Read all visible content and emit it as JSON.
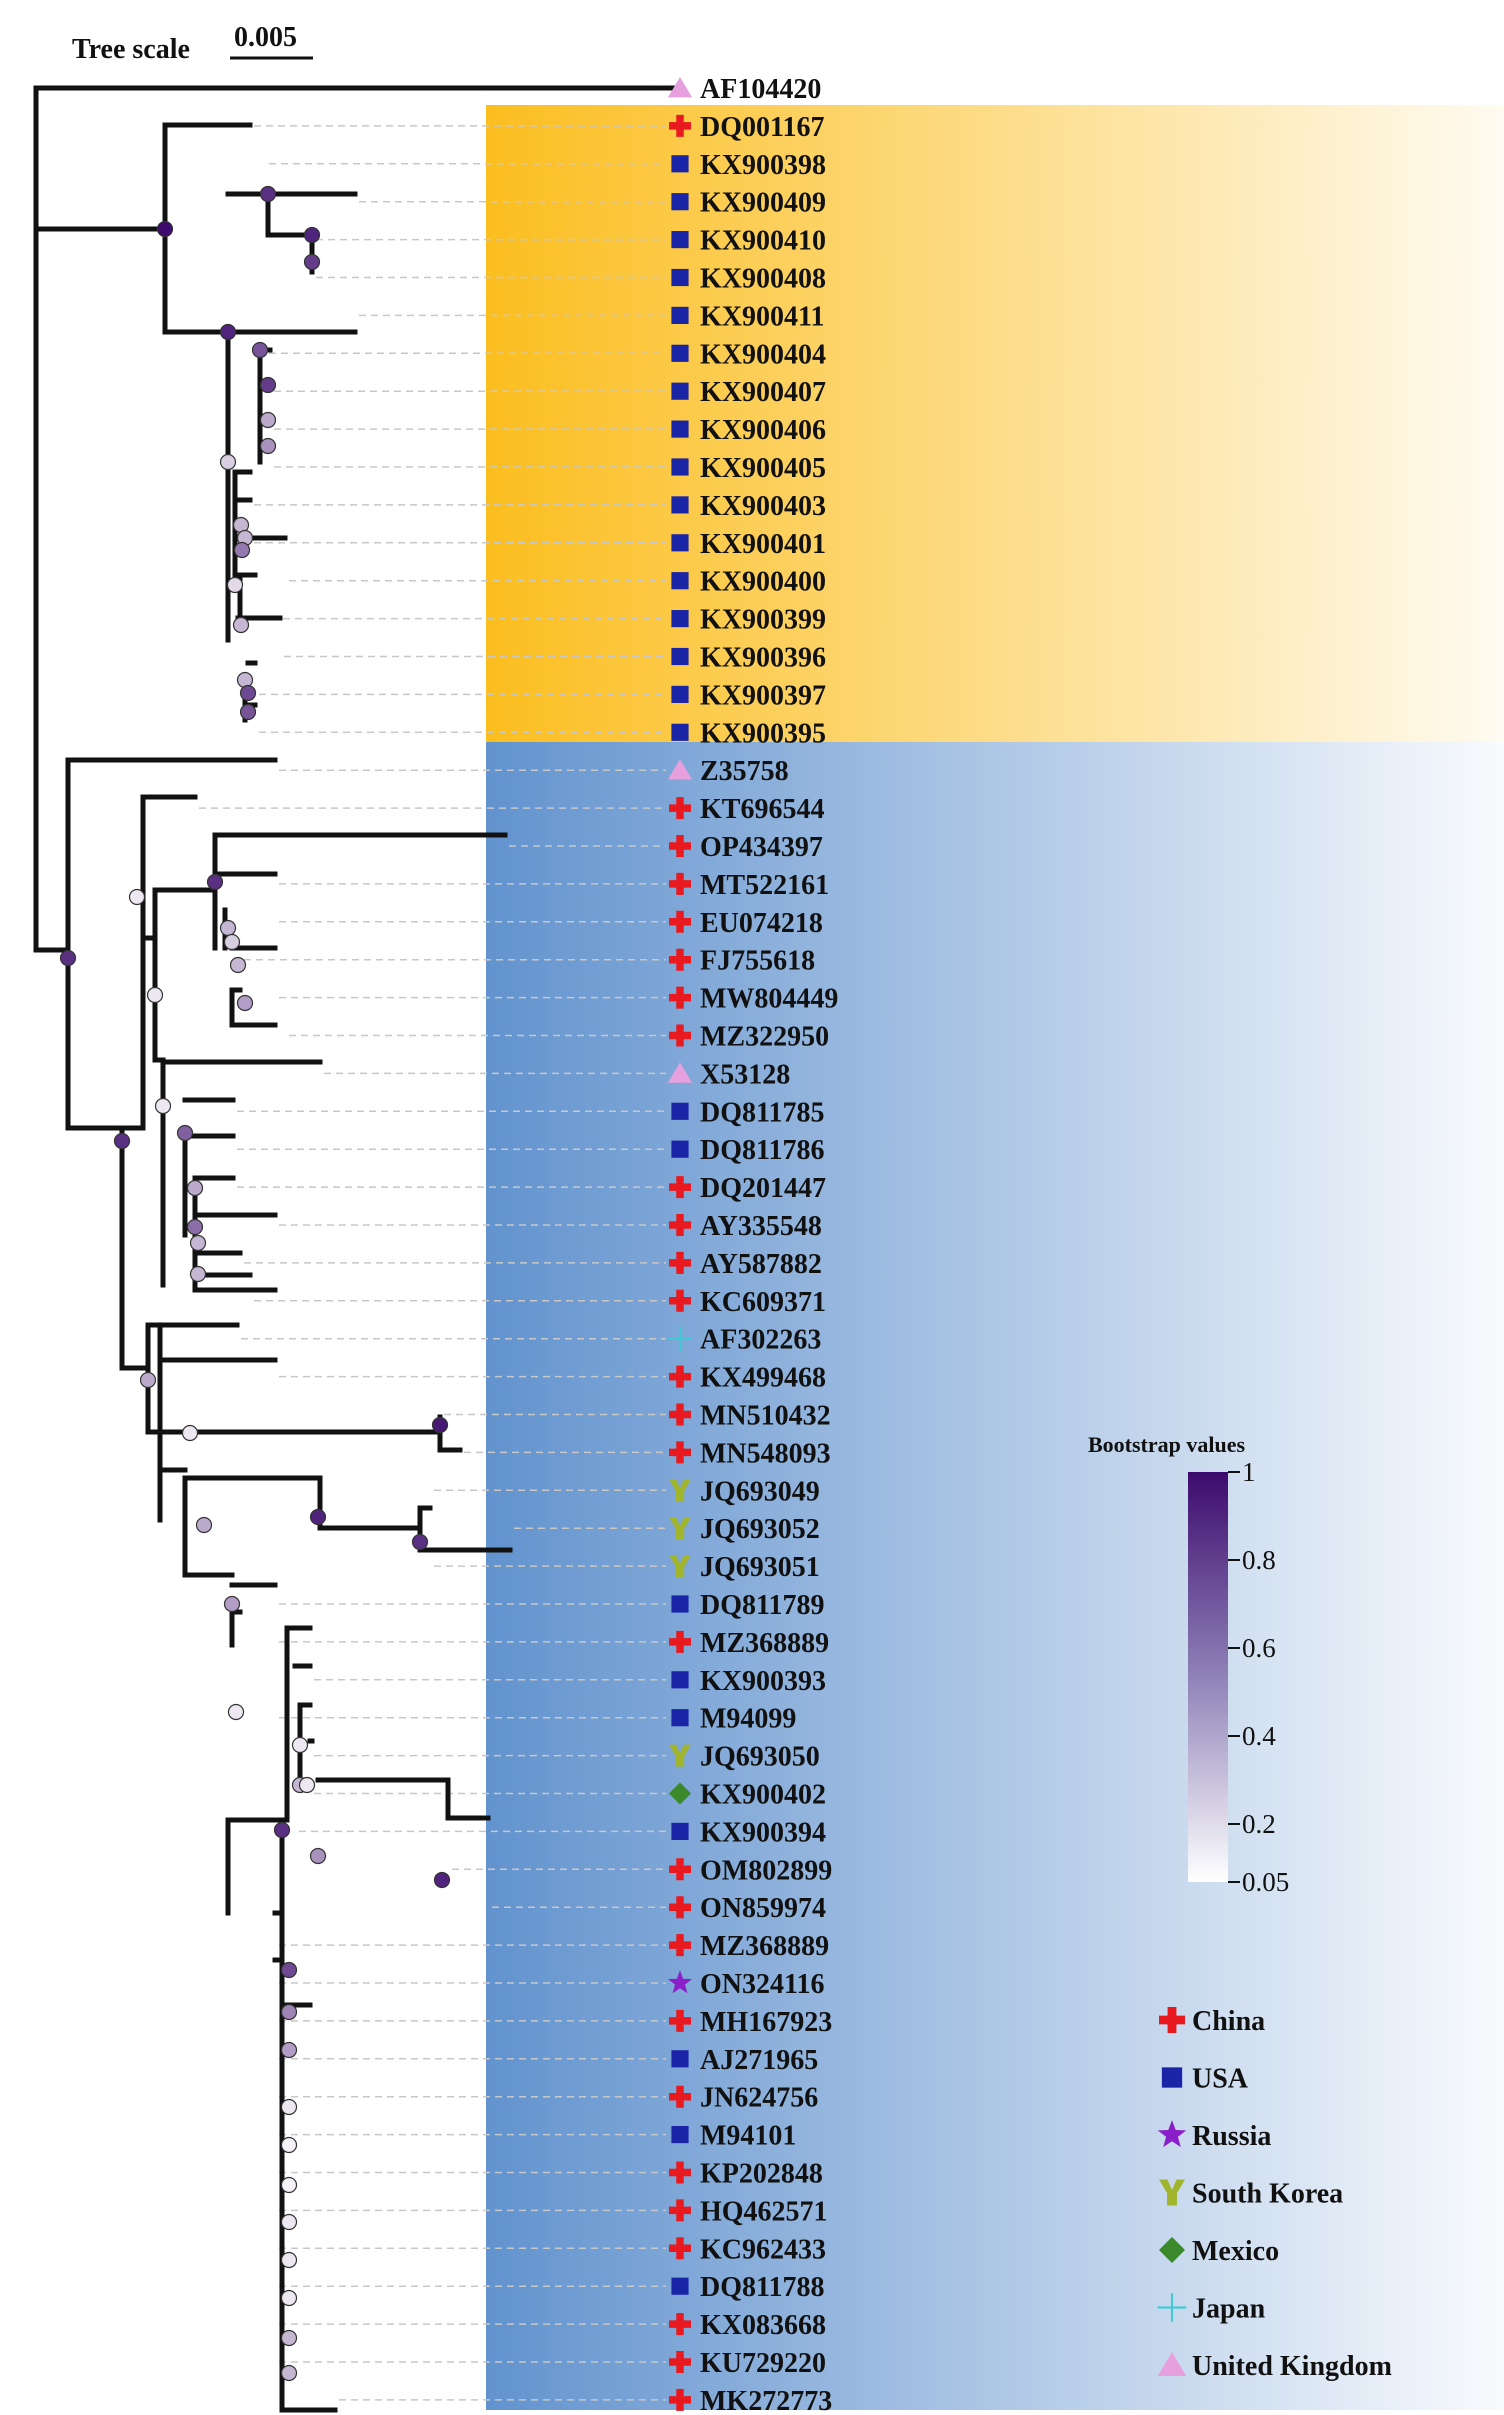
{
  "scale": {
    "label": "Tree scale",
    "value": "0.005"
  },
  "colors": {
    "China": "#e8191f",
    "USA": "#1a24a6",
    "Russia": "#8a1ec8",
    "South Korea": "#a0b52c",
    "Mexico": "#3a8a2c",
    "Japan": "#43c9d6",
    "United Kingdom": "#e7a0de",
    "clade1": "#fbbe1f",
    "clade2": "#6293ce",
    "boot_high": "#3d0b6d",
    "boot_low": "#ffffff"
  },
  "taxa": [
    {
      "name": "AF104420",
      "country": "United Kingdom"
    },
    {
      "name": "DQ001167",
      "country": "China"
    },
    {
      "name": "KX900398",
      "country": "USA"
    },
    {
      "name": "KX900409",
      "country": "USA"
    },
    {
      "name": "KX900410",
      "country": "USA"
    },
    {
      "name": "KX900408",
      "country": "USA"
    },
    {
      "name": "KX900411",
      "country": "USA"
    },
    {
      "name": "KX900404",
      "country": "USA"
    },
    {
      "name": "KX900407",
      "country": "USA"
    },
    {
      "name": "KX900406",
      "country": "USA"
    },
    {
      "name": "KX900405",
      "country": "USA"
    },
    {
      "name": "KX900403",
      "country": "USA"
    },
    {
      "name": "KX900401",
      "country": "USA"
    },
    {
      "name": "KX900400",
      "country": "USA"
    },
    {
      "name": "KX900399",
      "country": "USA"
    },
    {
      "name": "KX900396",
      "country": "USA"
    },
    {
      "name": "KX900397",
      "country": "USA"
    },
    {
      "name": "KX900395",
      "country": "USA"
    },
    {
      "name": "Z35758",
      "country": "United Kingdom"
    },
    {
      "name": "KT696544",
      "country": "China"
    },
    {
      "name": "OP434397",
      "country": "China"
    },
    {
      "name": "MT522161",
      "country": "China"
    },
    {
      "name": "EU074218",
      "country": "China"
    },
    {
      "name": "FJ755618",
      "country": "China"
    },
    {
      "name": "MW804449",
      "country": "China"
    },
    {
      "name": "MZ322950",
      "country": "China"
    },
    {
      "name": "X53128",
      "country": "United Kingdom"
    },
    {
      "name": "DQ811785",
      "country": "USA"
    },
    {
      "name": "DQ811786",
      "country": "USA"
    },
    {
      "name": "DQ201447",
      "country": "China"
    },
    {
      "name": "AY335548",
      "country": "China"
    },
    {
      "name": "AY587882",
      "country": "China"
    },
    {
      "name": "KC609371",
      "country": "China"
    },
    {
      "name": "AF302263",
      "country": "Japan"
    },
    {
      "name": "KX499468",
      "country": "China"
    },
    {
      "name": "MN510432",
      "country": "China"
    },
    {
      "name": "MN548093",
      "country": "China"
    },
    {
      "name": "JQ693049",
      "country": "South Korea"
    },
    {
      "name": "JQ693052",
      "country": "South Korea"
    },
    {
      "name": "JQ693051",
      "country": "South Korea"
    },
    {
      "name": "DQ811789",
      "country": "USA"
    },
    {
      "name": "MZ368889",
      "country": "China"
    },
    {
      "name": "KX900393",
      "country": "USA"
    },
    {
      "name": "M94099",
      "country": "USA"
    },
    {
      "name": "JQ693050",
      "country": "South Korea"
    },
    {
      "name": "KX900402",
      "country": "Mexico"
    },
    {
      "name": "KX900394",
      "country": "USA"
    },
    {
      "name": "OM802899",
      "country": "China"
    },
    {
      "name": "ON859974",
      "country": "China"
    },
    {
      "name": "MZ368889",
      "country": "China"
    },
    {
      "name": "ON324116",
      "country": "Russia"
    },
    {
      "name": "MH167923",
      "country": "China"
    },
    {
      "name": "AJ271965",
      "country": "USA"
    },
    {
      "name": "JN624756",
      "country": "China"
    },
    {
      "name": "M94101",
      "country": "USA"
    },
    {
      "name": "KP202848",
      "country": "China"
    },
    {
      "name": "HQ462571",
      "country": "China"
    },
    {
      "name": "KC962433",
      "country": "China"
    },
    {
      "name": "DQ811788",
      "country": "USA"
    },
    {
      "name": "KX083668",
      "country": "China"
    },
    {
      "name": "KU729220",
      "country": "China"
    },
    {
      "name": "MK272773",
      "country": "China"
    }
  ],
  "legend": [
    {
      "label": "China"
    },
    {
      "label": "USA"
    },
    {
      "label": "Russia"
    },
    {
      "label": "South Korea"
    },
    {
      "label": "Mexico"
    },
    {
      "label": "Japan"
    },
    {
      "label": "United Kingdom"
    }
  ],
  "colorbar": {
    "title": "Bootstrap values",
    "ticks": [
      "1",
      "0.8",
      "0.6",
      "0.4",
      "0.2",
      "0.05"
    ]
  }
}
